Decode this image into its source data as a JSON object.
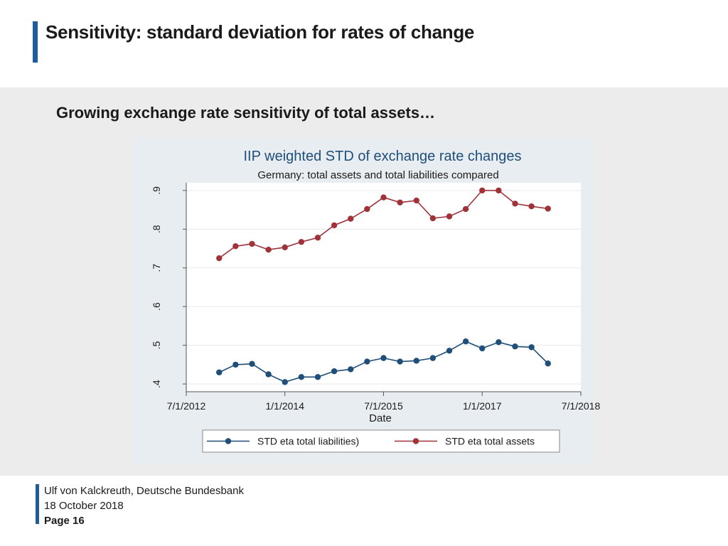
{
  "slide": {
    "title": "Sensitivity: standard deviation for rates of change",
    "subtitle": "Growing exchange rate sensitivity of total assets…"
  },
  "footer": {
    "author": "Ulf von Kalckreuth, Deutsche Bundesbank",
    "date": "18 October 2018",
    "page": "Page 16"
  },
  "colors": {
    "accent": "#1f5c99",
    "liabilities": "#1f4e79",
    "assets": "#a0333a"
  },
  "chart_data": {
    "type": "line",
    "title": "IIP weighted STD of exchange rate changes",
    "subtitle": "Germany: total assets and total liabilities compared",
    "xlabel": "Date",
    "ylabel": "",
    "x_ticks": [
      "7/1/2012",
      "1/1/2014",
      "7/1/2015",
      "1/1/2017",
      "7/1/2018"
    ],
    "y_ticks": [
      ".4",
      ".5",
      ".6",
      ".7",
      ".8",
      ".9"
    ],
    "y_tick_values": [
      0.4,
      0.5,
      0.6,
      0.7,
      0.8,
      0.9
    ],
    "ylim": [
      0.38,
      0.92
    ],
    "x_dates": [
      "2013-01",
      "2013-04",
      "2013-07",
      "2013-10",
      "2014-01",
      "2014-04",
      "2014-07",
      "2014-10",
      "2015-01",
      "2015-04",
      "2015-07",
      "2015-10",
      "2016-01",
      "2016-04",
      "2016-07",
      "2016-10",
      "2017-01",
      "2017-04",
      "2017-07",
      "2017-10",
      "2018-01"
    ],
    "x_numeric": [
      0.5,
      0.75,
      1.0,
      1.25,
      1.5,
      1.75,
      2.0,
      2.25,
      2.5,
      2.75,
      3.0,
      3.25,
      3.5,
      3.75,
      4.0,
      4.25,
      4.5,
      4.75,
      5.0,
      5.25,
      5.5
    ],
    "xlim": [
      0,
      6
    ],
    "x_tick_values": [
      0,
      1.5,
      3.0,
      4.5,
      6.0
    ],
    "grid": true,
    "legend": "bottom",
    "series": [
      {
        "name": "STD eta total liabilities)",
        "color": "#1f4e79",
        "values": [
          0.43,
          0.45,
          0.452,
          0.425,
          0.405,
          0.418,
          0.418,
          0.433,
          0.438,
          0.458,
          0.467,
          0.458,
          0.46,
          0.467,
          0.486,
          0.51,
          0.492,
          0.508,
          0.497,
          0.495,
          0.453
        ]
      },
      {
        "name": "STD eta total assets",
        "color": "#a0333a",
        "values": [
          0.725,
          0.756,
          0.762,
          0.747,
          0.753,
          0.767,
          0.778,
          0.81,
          0.827,
          0.852,
          0.882,
          0.869,
          0.874,
          0.828,
          0.833,
          0.852,
          0.9,
          0.9,
          0.866,
          0.859,
          0.853
        ]
      }
    ]
  }
}
